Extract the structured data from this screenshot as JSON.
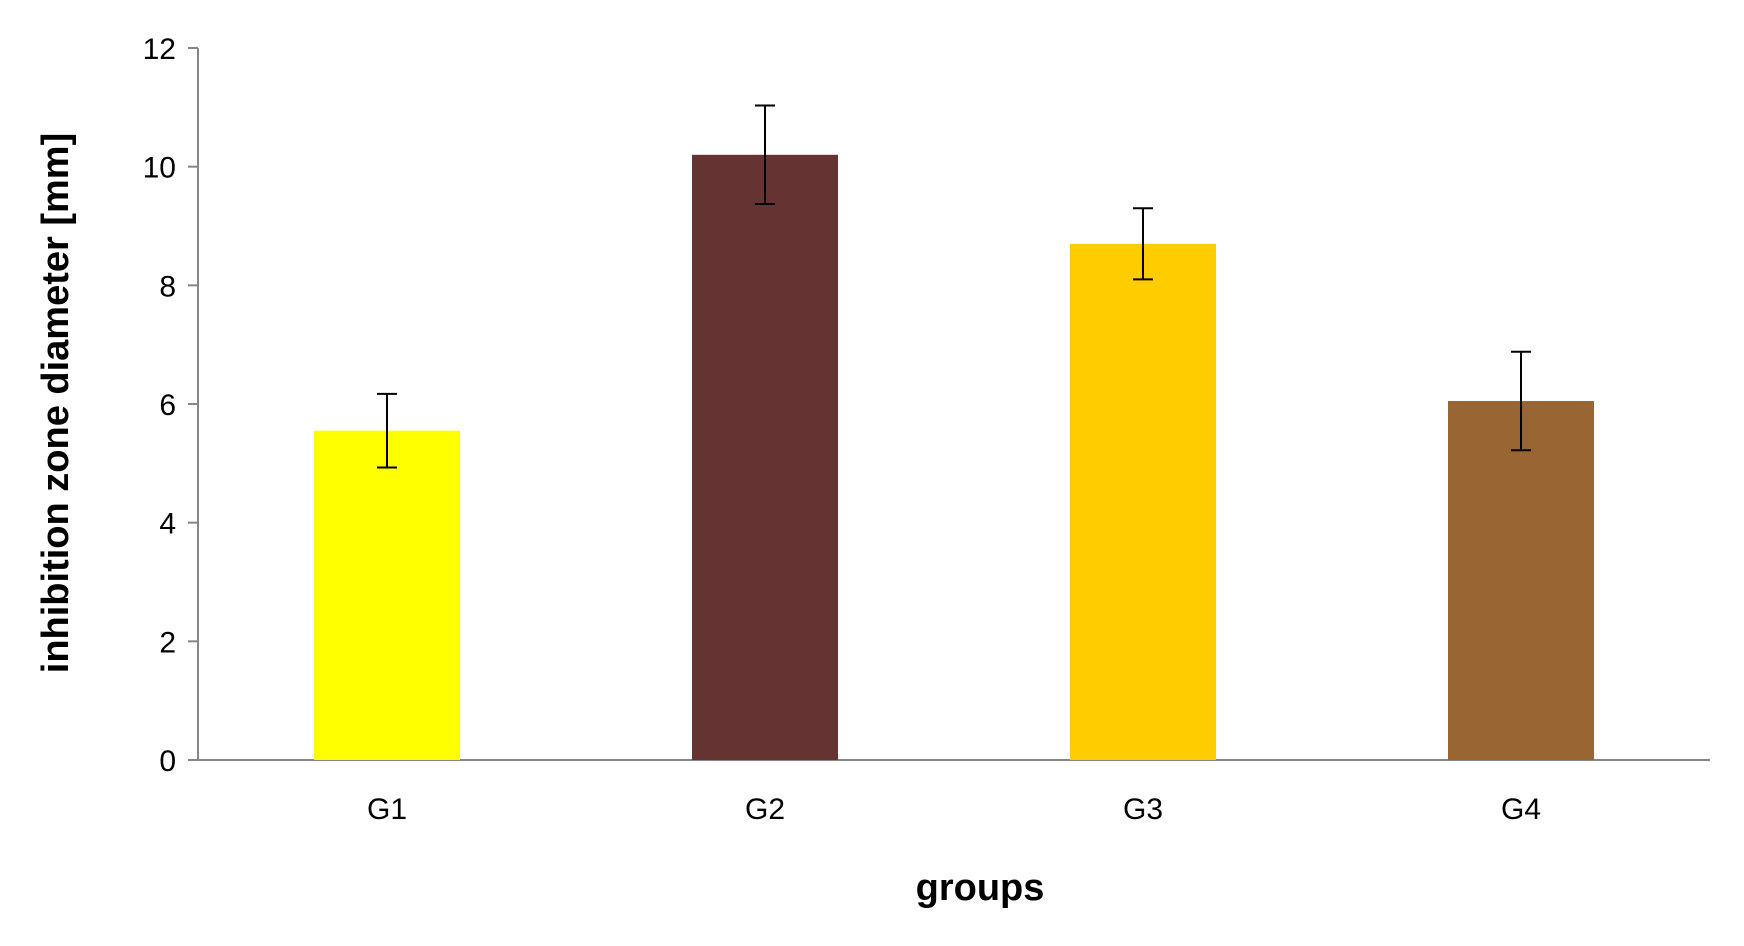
{
  "chart_data": {
    "type": "bar",
    "title": "",
    "xlabel": "groups",
    "ylabel": "inhibition zone diameter [mm]",
    "categories": [
      "G1",
      "G2",
      "G3",
      "G4"
    ],
    "values": [
      5.55,
      10.2,
      8.7,
      6.05
    ],
    "errors": [
      0.62,
      0.83,
      0.6,
      0.83
    ],
    "colors": [
      "#FFFF00",
      "#663333",
      "#FFCC00",
      "#996633"
    ],
    "ylim": [
      0,
      12
    ],
    "yticks": [
      0,
      2,
      4,
      6,
      8,
      10,
      12
    ],
    "grid": false,
    "legend": "none"
  }
}
